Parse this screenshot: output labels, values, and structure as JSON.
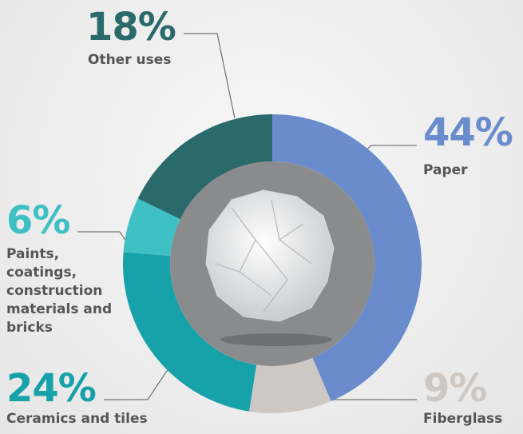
{
  "chart_data": {
    "type": "donut",
    "categories": [
      "Paper",
      "Fiberglass",
      "Ceramics and tiles",
      "Paints, coatings, construction materials and bricks",
      "Other uses"
    ],
    "values": [
      44,
      9,
      24,
      6,
      18
    ],
    "value_labels": [
      "44%",
      "9%",
      "24%",
      "6%",
      "18%"
    ],
    "colors": [
      "#6a8ccc",
      "#cdc8c3",
      "#17a2aa",
      "#3fc0c5",
      "#2b6a6b"
    ]
  }
}
